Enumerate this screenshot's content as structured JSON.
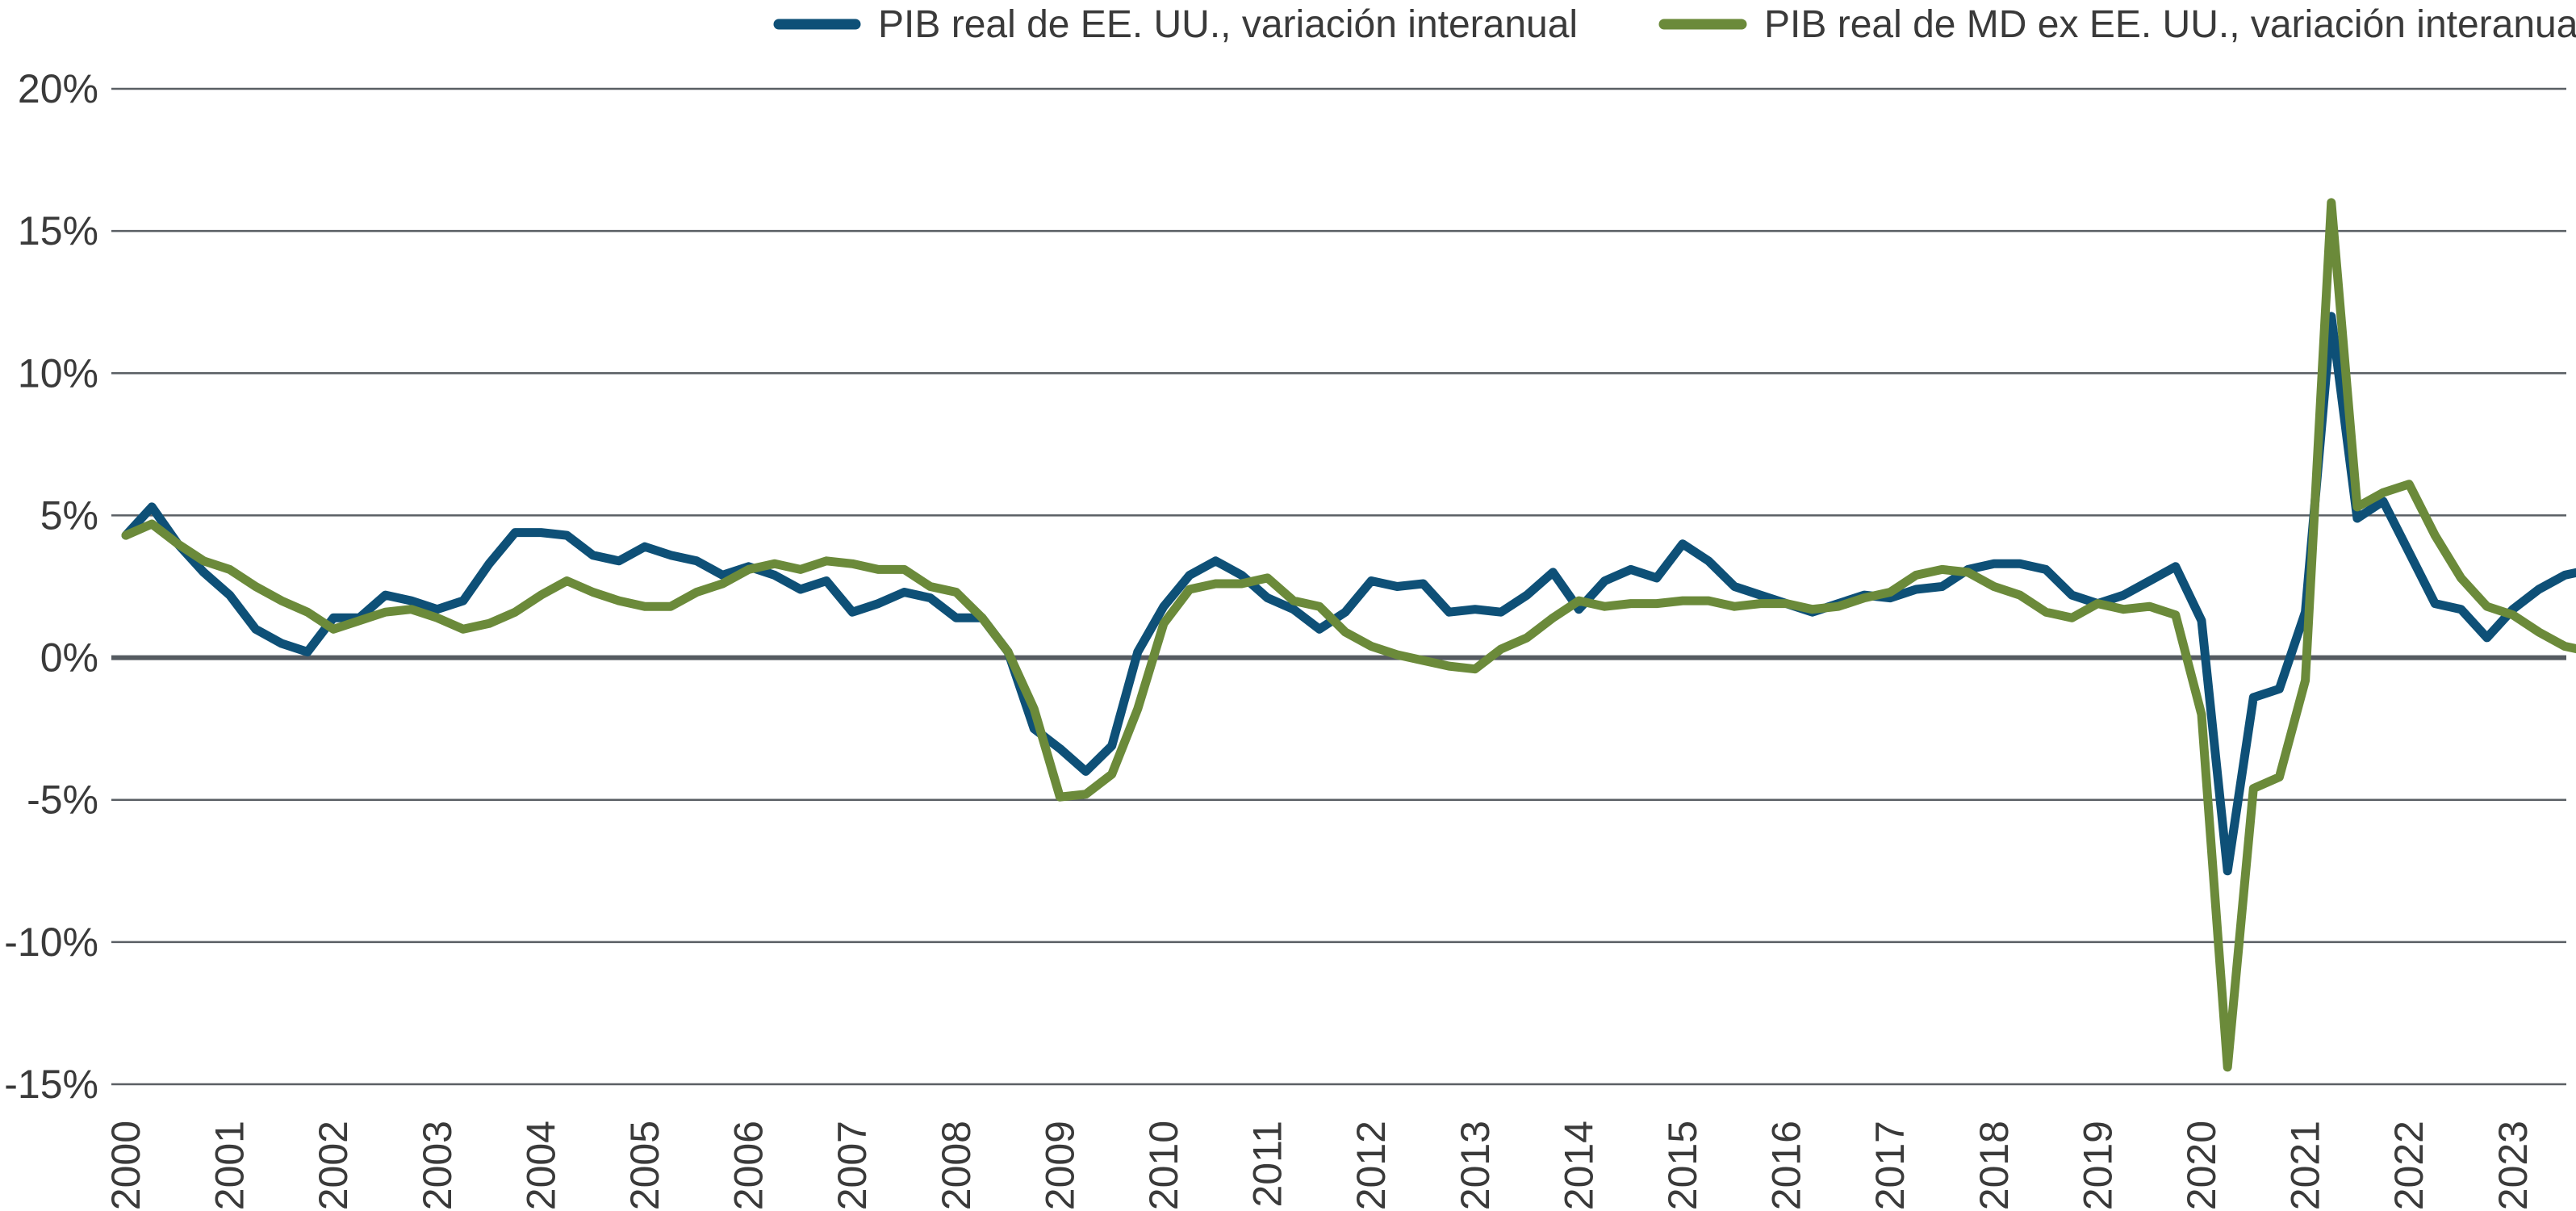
{
  "chart_data": {
    "type": "line",
    "title": "",
    "xlabel": "",
    "ylabel": "",
    "ylim": [
      -15,
      20
    ],
    "y_ticks": [
      20,
      15,
      10,
      5,
      0,
      -5,
      -10,
      -15
    ],
    "y_tick_labels": [
      "20%",
      "15%",
      "10%",
      "5%",
      "0%",
      "-5%",
      "-10%",
      "-15%"
    ],
    "x_range": [
      2000,
      2023.75
    ],
    "x_ticks": [
      2000,
      2001,
      2002,
      2003,
      2004,
      2005,
      2006,
      2007,
      2008,
      2009,
      2010,
      2011,
      2012,
      2013,
      2014,
      2015,
      2016,
      2017,
      2018,
      2019,
      2020,
      2021,
      2022,
      2023
    ],
    "x_tick_labels": [
      "2000",
      "2001",
      "2002",
      "2003",
      "2004",
      "2005",
      "2006",
      "2007",
      "2008",
      "2009",
      "2010",
      "2011",
      "2012",
      "2013",
      "2014",
      "2015",
      "2016",
      "2017",
      "2018",
      "2019",
      "2020",
      "2021",
      "2022",
      "2023"
    ],
    "grid": true,
    "legend_position": "top",
    "x_start": 2000,
    "x_step": 0.25,
    "series": [
      {
        "name": "PIB real de EE. UU., variación interanual",
        "color": "#0e5077",
        "values": [
          4.3,
          5.3,
          4.0,
          3.0,
          2.2,
          1.0,
          0.5,
          0.2,
          1.4,
          1.4,
          2.2,
          2.0,
          1.7,
          2.0,
          3.3,
          4.4,
          4.4,
          4.3,
          3.6,
          3.4,
          3.9,
          3.6,
          3.4,
          2.9,
          3.2,
          2.9,
          2.4,
          2.7,
          1.6,
          1.9,
          2.3,
          2.1,
          1.4,
          1.4,
          0.2,
          -2.5,
          -3.2,
          -4.0,
          -3.1,
          0.2,
          1.8,
          2.9,
          3.4,
          2.9,
          2.1,
          1.7,
          1.0,
          1.6,
          2.7,
          2.5,
          2.6,
          1.6,
          1.7,
          1.6,
          2.2,
          3.0,
          1.7,
          2.7,
          3.1,
          2.8,
          4.0,
          3.4,
          2.5,
          2.2,
          1.9,
          1.6,
          1.9,
          2.2,
          2.1,
          2.4,
          2.5,
          3.1,
          3.3,
          3.3,
          3.1,
          2.2,
          1.9,
          2.2,
          2.7,
          3.2,
          1.3,
          -7.5,
          -1.4,
          -1.1,
          1.6,
          12.0,
          4.9,
          5.5,
          3.7,
          1.9,
          1.7,
          0.7,
          1.7,
          2.4,
          2.9,
          3.1
        ]
      },
      {
        "name": "PIB real de MD ex EE. UU., variación interanual",
        "color": "#6b8a3a",
        "values": [
          4.3,
          4.7,
          4.0,
          3.4,
          3.1,
          2.5,
          2.0,
          1.6,
          1.0,
          1.3,
          1.6,
          1.7,
          1.4,
          1.0,
          1.2,
          1.6,
          2.2,
          2.7,
          2.3,
          2.0,
          1.8,
          1.8,
          2.3,
          2.6,
          3.1,
          3.3,
          3.1,
          3.4,
          3.3,
          3.1,
          3.1,
          2.5,
          2.3,
          1.4,
          0.2,
          -1.8,
          -4.9,
          -4.8,
          -4.1,
          -1.8,
          1.2,
          2.4,
          2.6,
          2.6,
          2.8,
          2.0,
          1.8,
          0.9,
          0.4,
          0.1,
          -0.1,
          -0.3,
          -0.4,
          0.3,
          0.7,
          1.4,
          2.0,
          1.8,
          1.9,
          1.9,
          2.0,
          2.0,
          1.8,
          1.9,
          1.9,
          1.7,
          1.8,
          2.1,
          2.3,
          2.9,
          3.1,
          3.0,
          2.5,
          2.2,
          1.6,
          1.4,
          1.9,
          1.7,
          1.8,
          1.5,
          -2.0,
          -14.4,
          -4.6,
          -4.2,
          -0.8,
          16.0,
          5.3,
          5.8,
          6.1,
          4.3,
          2.8,
          1.8,
          1.5,
          0.9,
          0.4,
          0.2
        ]
      }
    ]
  }
}
